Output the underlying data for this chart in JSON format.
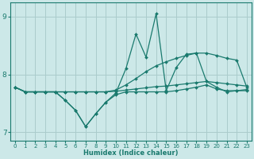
{
  "xlabel": "Humidex (Indice chaleur)",
  "xlim": [
    -0.5,
    23.5
  ],
  "ylim": [
    6.85,
    9.25
  ],
  "yticks": [
    7,
    8,
    9
  ],
  "xticks": [
    0,
    1,
    2,
    3,
    4,
    5,
    6,
    7,
    8,
    9,
    10,
    11,
    12,
    13,
    14,
    15,
    16,
    17,
    18,
    19,
    20,
    21,
    22,
    23
  ],
  "bg_color": "#cce8e8",
  "line_color": "#1a7a6e",
  "grid_color": "#aacccc",
  "lines": [
    {
      "x": [
        0,
        1,
        2,
        3,
        4,
        5,
        6,
        7,
        8,
        9,
        10,
        11,
        12,
        13,
        14,
        15,
        16,
        17,
        18,
        19,
        20,
        21,
        22,
        23
      ],
      "y": [
        7.78,
        7.7,
        7.7,
        7.7,
        7.7,
        7.55,
        7.38,
        7.1,
        7.32,
        7.52,
        7.65,
        7.7,
        7.7,
        7.7,
        7.7,
        7.7,
        7.72,
        7.75,
        7.78,
        7.82,
        7.75,
        7.72,
        7.72,
        7.72
      ]
    },
    {
      "x": [
        0,
        1,
        2,
        3,
        4,
        5,
        6,
        7,
        8,
        9,
        10,
        11,
        12,
        13,
        14,
        15,
        16,
        17,
        18,
        19,
        20,
        21,
        22,
        23
      ],
      "y": [
        7.78,
        7.7,
        7.7,
        7.7,
        7.7,
        7.7,
        7.7,
        7.7,
        7.7,
        7.7,
        7.71,
        7.73,
        7.75,
        7.77,
        7.79,
        7.8,
        7.82,
        7.84,
        7.86,
        7.88,
        7.86,
        7.84,
        7.82,
        7.8
      ]
    },
    {
      "x": [
        0,
        1,
        2,
        3,
        4,
        5,
        6,
        7,
        8,
        9,
        10,
        11,
        12,
        13,
        14,
        15,
        16,
        17,
        18,
        19,
        20,
        21,
        22,
        23
      ],
      "y": [
        7.78,
        7.7,
        7.7,
        7.7,
        7.7,
        7.7,
        7.7,
        7.7,
        7.7,
        7.7,
        7.73,
        7.82,
        7.93,
        8.05,
        8.15,
        8.22,
        8.28,
        8.33,
        8.37,
        8.37,
        8.33,
        8.28,
        8.25,
        7.78
      ]
    },
    {
      "x": [
        0,
        1,
        2,
        3,
        4,
        5,
        6,
        7,
        8,
        9,
        10,
        11,
        12,
        13,
        14,
        15,
        16,
        17,
        18,
        19,
        20,
        21,
        22,
        23
      ],
      "y": [
        7.78,
        7.7,
        7.7,
        7.7,
        7.7,
        7.55,
        7.38,
        7.1,
        7.32,
        7.52,
        7.68,
        8.1,
        8.7,
        8.3,
        9.05,
        7.72,
        8.12,
        8.35,
        8.37,
        7.88,
        7.78,
        7.7,
        7.72,
        7.74
      ]
    }
  ]
}
